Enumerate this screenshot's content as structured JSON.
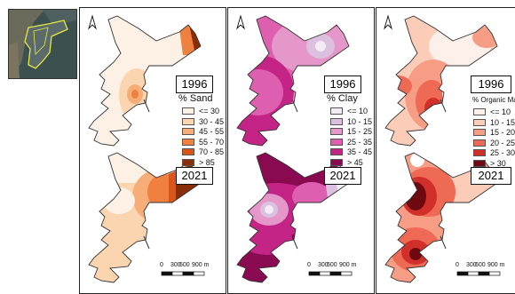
{
  "inset": {
    "icon": "location-inset-map"
  },
  "panels": [
    {
      "id": "sand",
      "years": [
        "1996",
        "2021"
      ],
      "legend_title": "% Sand",
      "legend": [
        {
          "label": "<= 30",
          "color": "#fdf1e6"
        },
        {
          "label": "30 - 45",
          "color": "#fbd5b0"
        },
        {
          "label": "45 - 55",
          "color": "#f7ad78"
        },
        {
          "label": "55 - 70",
          "color": "#ef8040"
        },
        {
          "label": "70 - 85",
          "color": "#d8561a"
        },
        {
          "label": "> 85",
          "color": "#8a2e08"
        }
      ],
      "scale_labels": [
        "0",
        "300",
        "600",
        "900 m"
      ]
    },
    {
      "id": "clay",
      "years": [
        "1996",
        "2021"
      ],
      "legend_title": "% Clay",
      "legend": [
        {
          "label": "<= 10",
          "color": "#f3ecf5"
        },
        {
          "label": "10 - 15",
          "color": "#dcc0e0"
        },
        {
          "label": "15 - 25",
          "color": "#e597c9"
        },
        {
          "label": "25 - 35",
          "color": "#de5fb0"
        },
        {
          "label": "35 - 45",
          "color": "#c42486"
        },
        {
          "label": "> 45",
          "color": "#8a0a52"
        }
      ],
      "scale_labels": [
        "0",
        "300",
        "600",
        "900 m"
      ]
    },
    {
      "id": "organic",
      "years": [
        "1996",
        "2021"
      ],
      "legend_title": "% Organic Matte",
      "legend": [
        {
          "label": "<= 10",
          "color": "#fdf0ea"
        },
        {
          "label": "10 - 15",
          "color": "#fbcdb8"
        },
        {
          "label": "15 - 20",
          "color": "#f79d86"
        },
        {
          "label": "20 - 25",
          "color": "#ef6a55"
        },
        {
          "label": "25 - 30",
          "color": "#d02f2a"
        },
        {
          "label": "> 30",
          "color": "#6e0a0f"
        }
      ],
      "scale_labels": [
        "0",
        "300",
        "600",
        "900 m"
      ]
    }
  ]
}
